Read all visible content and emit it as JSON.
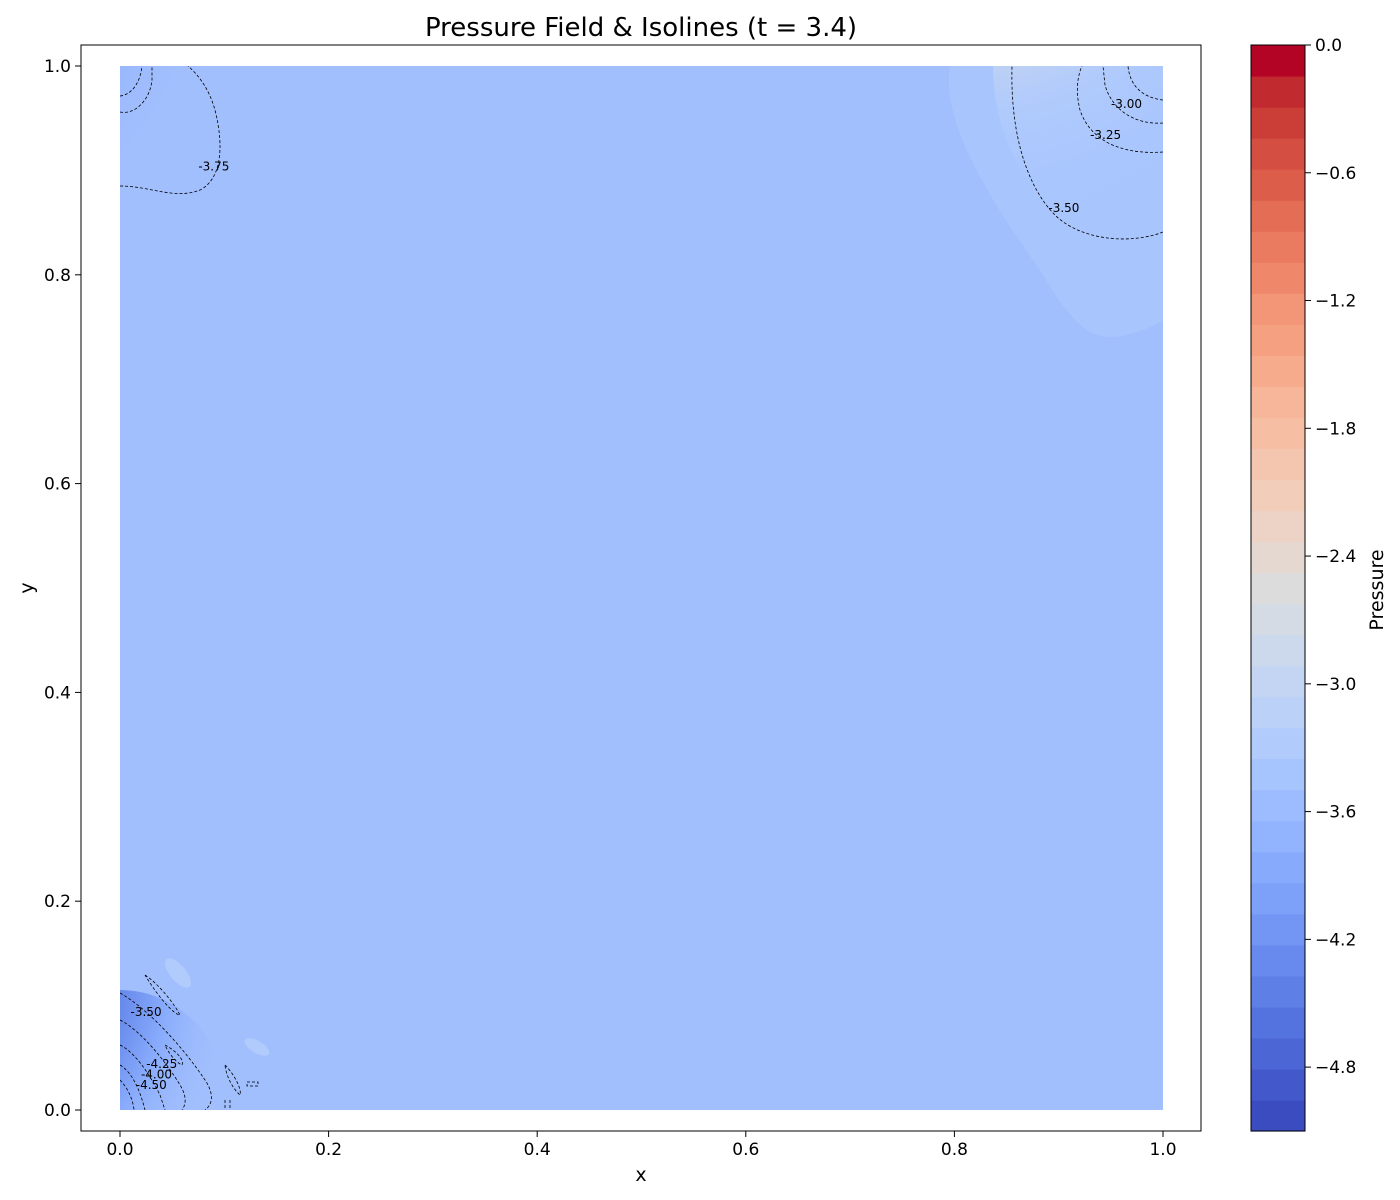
{
  "chart_data": {
    "type": "heatmap",
    "title": "Pressure Field & Isolines (t = 3.4)",
    "xlabel": "x",
    "ylabel": "y",
    "xlim": [
      0.0,
      1.0
    ],
    "ylim": [
      0.0,
      1.0
    ],
    "x_ticks": [
      "0.0",
      "0.2",
      "0.4",
      "0.6",
      "0.8",
      "1.0"
    ],
    "y_ticks": [
      "0.0",
      "0.2",
      "0.4",
      "0.6",
      "0.8",
      "1.0"
    ],
    "background_value": -3.7,
    "background_color": "#a1befd",
    "contour_labels": [
      {
        "text": "-3.75",
        "x": 0.09,
        "y": 0.9
      },
      {
        "text": "-3.00",
        "x": 0.965,
        "y": 0.96
      },
      {
        "text": "-3.25",
        "x": 0.945,
        "y": 0.93
      },
      {
        "text": "-3.50",
        "x": 0.905,
        "y": 0.86
      },
      {
        "text": "-3.50",
        "x": 0.025,
        "y": 0.09
      },
      {
        "text": "-4.25",
        "x": 0.04,
        "y": 0.04
      },
      {
        "text": "-4.00",
        "x": 0.035,
        "y": 0.03
      },
      {
        "text": "-4.50",
        "x": 0.03,
        "y": 0.02
      }
    ],
    "colorbar": {
      "label": "Pressure",
      "vmin": -5.1,
      "vmax": 0.0,
      "ticks": [
        {
          "value": 0.0,
          "label": "0.0"
        },
        {
          "value": -0.6,
          "label": "−0.6"
        },
        {
          "value": -1.2,
          "label": "−1.2"
        },
        {
          "value": -1.8,
          "label": "−1.8"
        },
        {
          "value": -2.4,
          "label": "−2.4"
        },
        {
          "value": -3.0,
          "label": "−3.0"
        },
        {
          "value": -3.6,
          "label": "−3.6"
        },
        {
          "value": -4.2,
          "label": "−4.2"
        },
        {
          "value": -4.8,
          "label": "−4.8"
        }
      ],
      "colors": [
        "#3b4cc0",
        "#4358cb",
        "#4c66d6",
        "#5573df",
        "#5e80e6",
        "#688aee",
        "#7396f5",
        "#7da0f9",
        "#87aafc",
        "#92b4fe",
        "#9cbcff",
        "#a6c4fe",
        "#b1cbfc",
        "#bbd1f8",
        "#c4d5f3",
        "#ccd9ed",
        "#d5dbe5",
        "#dddcdc",
        "#e5d8d1",
        "#ecd3c5",
        "#f1cdba",
        "#f4c6af",
        "#f6bea3",
        "#f7b599",
        "#f7ab8d",
        "#f5a081",
        "#f39677",
        "#ef886b",
        "#ea7b60",
        "#e36d55",
        "#dc5d4a",
        "#d44e41",
        "#cb3e38",
        "#c12b30",
        "#b40426"
      ]
    }
  }
}
